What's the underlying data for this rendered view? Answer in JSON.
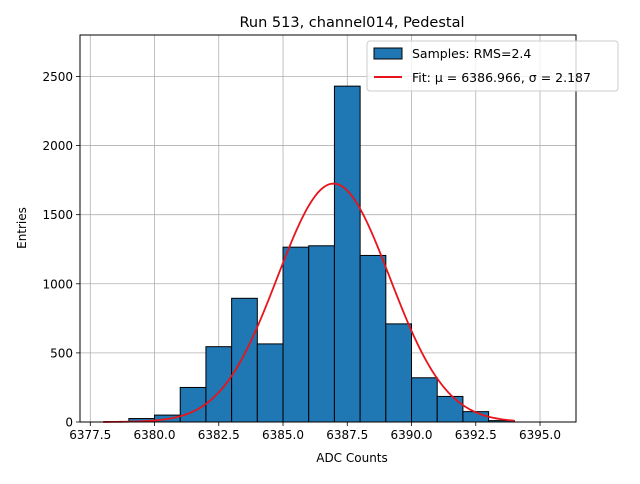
{
  "chart_data": {
    "type": "bar",
    "title": "Run 513, channel014, Pedestal",
    "xlabel": "ADC Counts",
    "ylabel": "Entries",
    "xlim": [
      6377.1,
      6396.4
    ],
    "ylim": [
      0,
      2800
    ],
    "grid": true,
    "legend_position": "top-right",
    "x_ticks": [
      6377.5,
      6380.0,
      6382.5,
      6385.0,
      6387.5,
      6390.0,
      6392.5,
      6395.0
    ],
    "x_tick_labels": [
      "6377.5",
      "6380.0",
      "6382.5",
      "6385.0",
      "6387.5",
      "6390.0",
      "6392.5",
      "6395.0"
    ],
    "y_ticks": [
      0,
      500,
      1000,
      1500,
      2000,
      2500
    ],
    "y_tick_labels": [
      "0",
      "500",
      "1000",
      "1500",
      "2000",
      "2500"
    ],
    "histogram": {
      "name": "Samples: RMS=2.4",
      "color": "#1f77b4",
      "edge_color": "#000000",
      "bin_width": 1,
      "bin_lefts": [
        6378,
        6379,
        6380,
        6381,
        6382,
        6383,
        6384,
        6385,
        6386,
        6387,
        6388,
        6389,
        6390,
        6391,
        6392,
        6393,
        6394,
        6395
      ],
      "values": [
        0,
        25,
        50,
        250,
        545,
        895,
        565,
        1265,
        1275,
        2430,
        1205,
        710,
        320,
        185,
        75,
        10,
        0,
        0
      ]
    },
    "fit": {
      "name": "Fit: μ = 6386.966, σ = 2.187",
      "color": "#e8141c",
      "mu": 6386.966,
      "sigma": 2.187,
      "peak": 1725,
      "x_range": [
        6378,
        6394
      ]
    }
  }
}
